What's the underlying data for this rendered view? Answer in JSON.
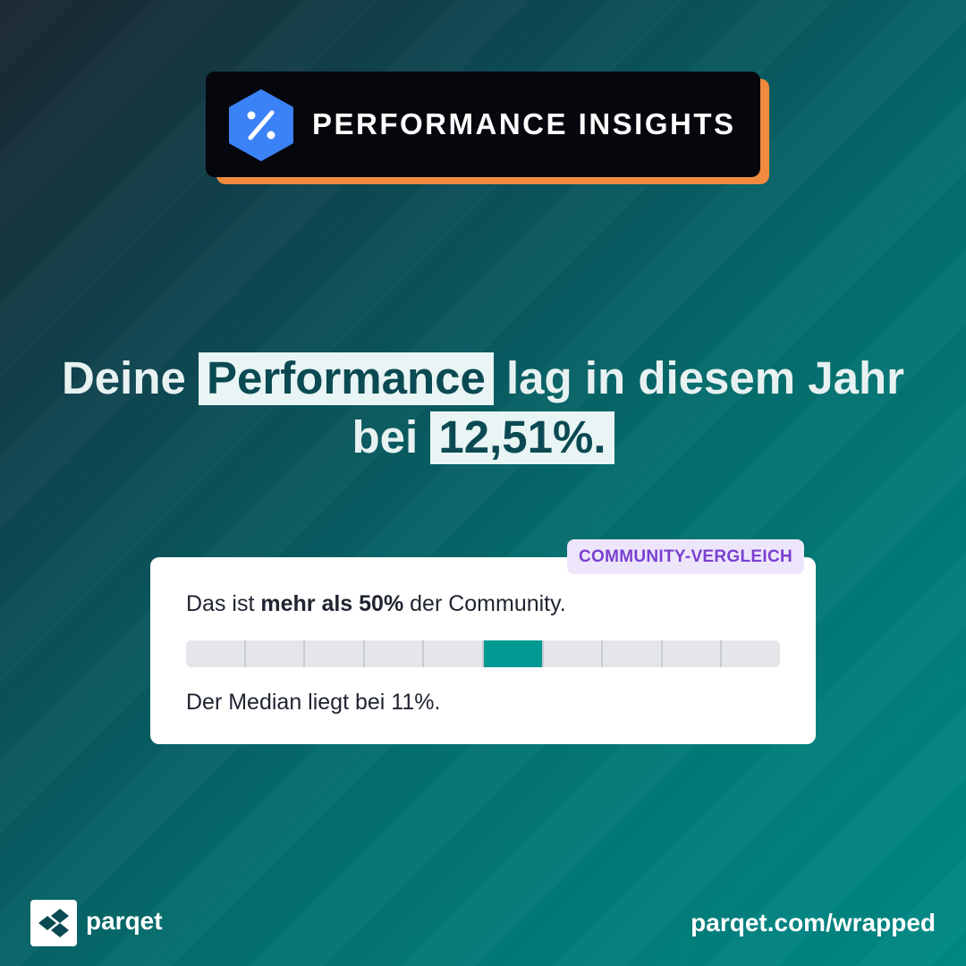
{
  "header": {
    "title": "PERFORMANCE INSIGHTS",
    "icon": "percent-icon",
    "accent_color": "#f08a3e",
    "icon_color": "#3b82f6"
  },
  "headline": {
    "part1": "Deine ",
    "highlight1": "Performance",
    "part2": " lag in diesem Jahr bei ",
    "highlight2": "12,51%."
  },
  "card": {
    "tag": "COMMUNITY-VERGLEICH",
    "line1_prefix": "Das ist ",
    "line1_bold": "mehr als 50%",
    "line1_suffix": " der Community.",
    "segments_total": 10,
    "active_segment": 6,
    "active_color": "#009a92",
    "median_text": "Der Median liegt bei 11%."
  },
  "footer": {
    "brand": "parqet",
    "logo_icon": "parqet-logo-icon",
    "url": "parqet.com/wrapped"
  }
}
